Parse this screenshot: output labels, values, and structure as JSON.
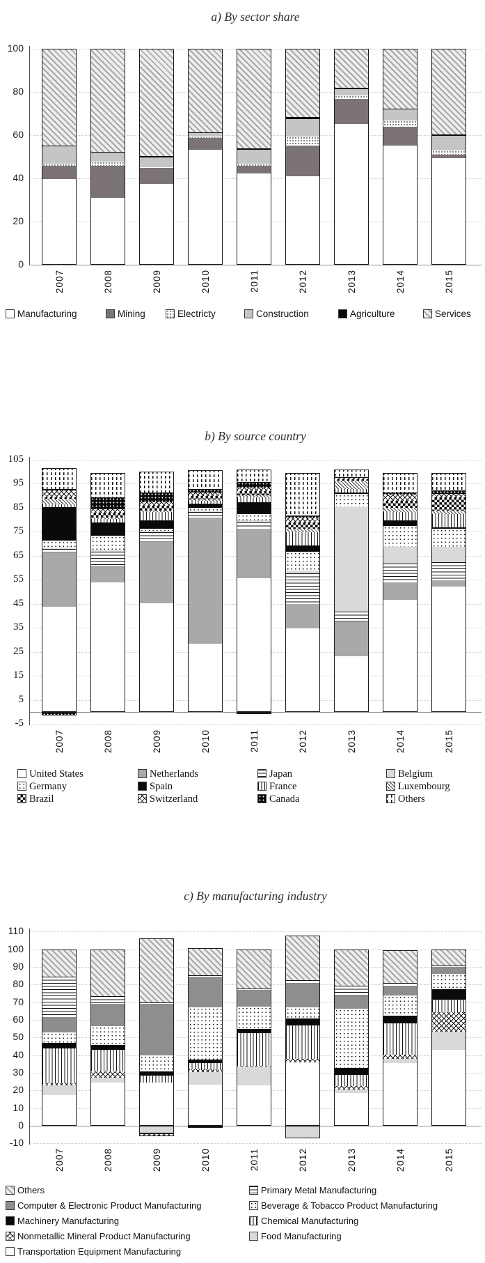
{
  "page": {
    "background": "#ffffff"
  },
  "colors": {
    "mining_gray": "#7b7374",
    "netherlands_gray": "#a9a9a9",
    "computer_gray": "#8e8e8e",
    "construction_gray": "#c5c5c5",
    "belgium_food_gray": "#d9d9d9",
    "black": "#0a0a0a",
    "hatch_light_bg": "#ececec"
  },
  "chart_data": [
    {
      "id": "a",
      "type": "bar",
      "stacked": true,
      "title": "a) By sector share",
      "categories": [
        "2007",
        "2008",
        "2009",
        "2010",
        "2011",
        "2012",
        "2013",
        "2014",
        "2015"
      ],
      "y_ticks": [
        100,
        80,
        60,
        40,
        20,
        0
      ],
      "ylim": [
        0,
        100
      ],
      "grid": true,
      "legend_position": "bottom",
      "series": [
        {
          "name": "Manufacturing",
          "pattern": "p-white",
          "values": [
            39.5,
            30.5,
            37,
            53,
            42,
            40.5,
            65,
            55,
            49
          ]
        },
        {
          "name": "Mining",
          "pattern": "p-gray-mining",
          "values": [
            6,
            15,
            7.5,
            5.5,
            3.5,
            14.5,
            11.5,
            8.5,
            1.5
          ]
        },
        {
          "name": "Electricty",
          "pattern": "p-dots-dense",
          "values": [
            1,
            2,
            0.5,
            0.5,
            1,
            4,
            1.5,
            3,
            2
          ]
        },
        {
          "name": "Construction",
          "pattern": "p-lgray-constr",
          "values": [
            8,
            4,
            4.5,
            1.5,
            6.5,
            8,
            3,
            5,
            7
          ]
        },
        {
          "name": "Agriculture",
          "pattern": "p-black",
          "values": [
            0.5,
            0.5,
            0.5,
            0.5,
            0.5,
            1,
            0.5,
            0.5,
            0.5
          ]
        },
        {
          "name": "Services",
          "pattern": "p-diag-light",
          "values": [
            45,
            48,
            50,
            39,
            46.5,
            32,
            18.5,
            28,
            40
          ]
        }
      ],
      "negatives": [],
      "legend": [
        {
          "label": "Manufacturing",
          "series": "Manufacturing"
        },
        {
          "label": "Mining",
          "series": "Mining"
        },
        {
          "label": "Electricty",
          "series": "Electricty"
        },
        {
          "label": "Construction",
          "series": "Construction"
        },
        {
          "label": "Agriculture",
          "series": "Agriculture"
        },
        {
          "label": "Services",
          "series": "Services"
        }
      ]
    },
    {
      "id": "b",
      "type": "bar",
      "stacked": true,
      "title": "b) By source country",
      "categories": [
        "2007",
        "2008",
        "2009",
        "2010",
        "2011",
        "2012",
        "2013",
        "2014",
        "2015"
      ],
      "y_ticks": [
        105,
        95,
        85,
        75,
        65,
        55,
        45,
        35,
        25,
        15,
        5,
        -5
      ],
      "ylim": [
        -5,
        105
      ],
      "grid": true,
      "legend_position": "bottom",
      "series": [
        {
          "name": "United States",
          "pattern": "p-white",
          "values": [
            43.5,
            53.5,
            45,
            28,
            55.5,
            34.5,
            23,
            46.5,
            52
          ]
        },
        {
          "name": "Netherlands",
          "pattern": "p-gray-nl",
          "values": [
            22.5,
            7,
            25.5,
            52.5,
            20.5,
            10,
            14,
            7,
            2.5
          ]
        },
        {
          "name": "Japan",
          "pattern": "p-hlines",
          "values": [
            1.5,
            6,
            4,
            2.5,
            2.5,
            13,
            4.5,
            8,
            7.5
          ]
        },
        {
          "name": "Belgium",
          "pattern": "p-lgray",
          "values": [
            0.5,
            0.5,
            0.5,
            0.5,
            1,
            1,
            43.5,
            7,
            6.5
          ]
        },
        {
          "name": "Germany",
          "pattern": "p-dots-sparse",
          "values": [
            3,
            6,
            1,
            1,
            2.5,
            8,
            5.5,
            8.5,
            7.5
          ]
        },
        {
          "name": "Spain",
          "pattern": "p-black",
          "values": [
            14,
            5.5,
            3.5,
            2,
            5,
            2.5,
            0.5,
            2.5,
            0.5
          ]
        },
        {
          "name": "France",
          "pattern": "p-vlines",
          "values": [
            1,
            1.5,
            3.5,
            1,
            2,
            5.5,
            1.5,
            3.5,
            5.5
          ]
        },
        {
          "name": "Luxembourg",
          "pattern": "p-diag-fine",
          "values": [
            2.5,
            0.5,
            0.5,
            0.5,
            1,
            1.5,
            3.5,
            1.5,
            1.5
          ]
        },
        {
          "name": "Brazil",
          "pattern": "p-checker",
          "values": [
            0.5,
            2,
            2,
            1.5,
            1.5,
            2.5,
            0.5,
            3,
            5.5
          ]
        },
        {
          "name": "Switzerland",
          "pattern": "p-cross",
          "values": [
            3,
            1.5,
            1.5,
            1.5,
            1.5,
            2,
            0.5,
            2.5,
            1.5
          ]
        },
        {
          "name": "Canada",
          "pattern": "p-black-dots",
          "values": [
            0.5,
            5,
            4,
            1.5,
            2.5,
            1,
            0.5,
            1,
            1.5
          ]
        },
        {
          "name": "Others",
          "pattern": "p-dash-v",
          "values": [
            9,
            10.5,
            9,
            8,
            5.5,
            18,
            3.5,
            8.5,
            7.5
          ]
        }
      ],
      "negatives": [
        {
          "category": "2007",
          "series": "Canada",
          "value": -1.5
        },
        {
          "category": "2011",
          "series": "Japan",
          "value": -1
        }
      ],
      "legend": [
        {
          "label": "United States",
          "series": "United States"
        },
        {
          "label": "Netherlands",
          "series": "Netherlands"
        },
        {
          "label": "Japan",
          "series": "Japan"
        },
        {
          "label": "Belgium",
          "series": "Belgium"
        },
        {
          "label": "Germany",
          "series": "Germany"
        },
        {
          "label": "Spain",
          "series": "Spain"
        },
        {
          "label": "France",
          "series": "France"
        },
        {
          "label": "Luxembourg",
          "series": "Luxembourg"
        },
        {
          "label": "Brazil",
          "series": "Brazil"
        },
        {
          "label": "Switzerland",
          "series": "Switzerland"
        },
        {
          "label": "Canada",
          "series": "Canada"
        },
        {
          "label": "Others",
          "series": "Others"
        }
      ]
    },
    {
      "id": "c",
      "type": "bar",
      "stacked": true,
      "title": "c) By manufacturing industry",
      "categories": [
        "2007",
        "2008",
        "2009",
        "2010",
        "2011",
        "2012",
        "2013",
        "2014",
        "2015"
      ],
      "y_ticks": [
        110,
        100,
        90,
        80,
        70,
        60,
        50,
        40,
        30,
        20,
        10,
        0,
        -10
      ],
      "ylim": [
        -10,
        110
      ],
      "grid": true,
      "legend_position": "bottom",
      "series": [
        {
          "name": "Transportation Equipment Manufacturing",
          "pattern": "p-white",
          "values": [
            17,
            24,
            24,
            23,
            22.5,
            35.5,
            18,
            35,
            42.5
          ]
        },
        {
          "name": "Food Manufacturing",
          "pattern": "p-lgray",
          "values": [
            5.5,
            3,
            0,
            7,
            10.5,
            0,
            2,
            2.5,
            10.5
          ]
        },
        {
          "name": "Nonmetallic Mineral Product Manufacturing",
          "pattern": "p-cross",
          "values": [
            1,
            3.5,
            0,
            1.5,
            0.5,
            2,
            2,
            2.5,
            11
          ]
        },
        {
          "name": "Chemical Manufacturing",
          "pattern": "p-vlines",
          "values": [
            20,
            12,
            4,
            3.5,
            18.5,
            19,
            6.5,
            17.5,
            7
          ]
        },
        {
          "name": "Machinery Manufacturing",
          "pattern": "p-black",
          "values": [
            3,
            3,
            2.5,
            2,
            2.5,
            4,
            4,
            4.5,
            6
          ]
        },
        {
          "name": "Beverage & Tobacco Product Manufacturing",
          "pattern": "p-dots-sparse",
          "values": [
            6,
            10.5,
            9,
            29.5,
            12.5,
            6,
            33.5,
            11.5,
            8.5
          ]
        },
        {
          "name": "Computer & Electronic Product Manufacturing",
          "pattern": "p-gray-comp",
          "values": [
            8.5,
            12.5,
            29,
            17.5,
            9.5,
            13.5,
            7.5,
            5,
            4
          ]
        },
        {
          "name": "Primary Metal Manufacturing",
          "pattern": "p-hlines",
          "values": [
            23,
            4.5,
            1,
            1,
            1,
            2,
            5.5,
            2,
            1
          ]
        },
        {
          "name": "Others",
          "pattern": "p-diag-light",
          "values": [
            16,
            27,
            36.5,
            15.5,
            22.5,
            25.5,
            21,
            19,
            9.5
          ]
        }
      ],
      "negatives": [
        {
          "category": "2009",
          "series": "Food Manufacturing",
          "value": -4.5
        },
        {
          "category": "2009",
          "series": "Nonmetallic Mineral Product Manufacturing",
          "value": -1.5
        },
        {
          "category": "2010",
          "series": "Machinery Manufacturing",
          "value": -1
        },
        {
          "category": "2012",
          "series": "Food Manufacturing",
          "value": -7
        }
      ],
      "legend": [
        {
          "label": "Others",
          "series": "Others"
        },
        {
          "label": "Primary Metal Manufacturing",
          "series": "Primary Metal Manufacturing"
        },
        {
          "label": "Computer & Electronic Product Manufacturing",
          "series": "Computer & Electronic Product Manufacturing"
        },
        {
          "label": "Beverage & Tobacco Product Manufacturing",
          "series": "Beverage & Tobacco Product Manufacturing"
        },
        {
          "label": "Machinery Manufacturing",
          "series": "Machinery Manufacturing"
        },
        {
          "label": "Chemical Manufacturing",
          "series": "Chemical Manufacturing"
        },
        {
          "label": "Nonmetallic Mineral Product Manufacturing",
          "series": "Nonmetallic Mineral Product Manufacturing"
        },
        {
          "label": "Food Manufacturing",
          "series": "Food Manufacturing"
        },
        {
          "label": "Transportation Equipment Manufacturing",
          "series": "Transportation Equipment Manufacturing"
        }
      ]
    }
  ]
}
